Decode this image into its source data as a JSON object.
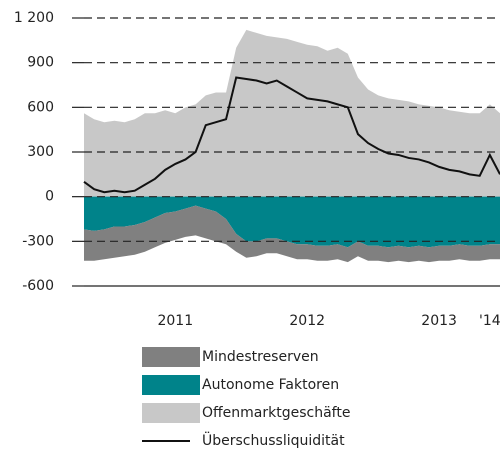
{
  "chart_data": {
    "type": "area",
    "categories": [
      null,
      null,
      null,
      null,
      null,
      null,
      null,
      null,
      null,
      "2011",
      null,
      null,
      null,
      null,
      null,
      null,
      null,
      null,
      null,
      null,
      null,
      null,
      "2012",
      null,
      null,
      null,
      null,
      null,
      null,
      null,
      null,
      null,
      null,
      null,
      null,
      "2013",
      null,
      null,
      null,
      null,
      "'14",
      null
    ],
    "series": [
      {
        "name": "Mindestreserven",
        "type": "area",
        "color": "#808080",
        "values": [
          -210,
          -200,
          -200,
          -210,
          -200,
          -200,
          -200,
          -200,
          -200,
          -190,
          -190,
          -200,
          -200,
          -200,
          -170,
          -120,
          -110,
          -100,
          -100,
          -100,
          -100,
          -100,
          -100,
          -100,
          -100,
          -100,
          -100,
          -100,
          -100,
          -100,
          -100,
          -100,
          -100,
          -100,
          -100,
          -100,
          -100,
          -100,
          -100,
          -100,
          -100,
          -100
        ]
      },
      {
        "name": "Autonome Faktoren",
        "type": "area",
        "color": "#00838a",
        "values": [
          -220,
          -230,
          -220,
          -200,
          -200,
          -190,
          -170,
          -140,
          -110,
          -100,
          -80,
          -60,
          -80,
          -100,
          -150,
          -250,
          -300,
          -300,
          -280,
          -280,
          -300,
          -320,
          -320,
          -330,
          -330,
          -320,
          -340,
          -300,
          -330,
          -330,
          -340,
          -330,
          -340,
          -330,
          -340,
          -330,
          -330,
          -320,
          -330,
          -330,
          -320,
          -320
        ]
      },
      {
        "name": "Offenmarktgeschäfte",
        "type": "area",
        "color": "#c8c8c8",
        "values": [
          560,
          520,
          500,
          510,
          500,
          520,
          560,
          560,
          580,
          560,
          600,
          620,
          680,
          700,
          700,
          1000,
          1120,
          1100,
          1080,
          1070,
          1060,
          1040,
          1020,
          1010,
          980,
          1000,
          960,
          800,
          720,
          680,
          660,
          650,
          640,
          620,
          610,
          600,
          580,
          570,
          560,
          560,
          620,
          560
        ]
      },
      {
        "name": "Überschussliquidität",
        "type": "line",
        "color": "#111111",
        "values": [
          100,
          50,
          30,
          40,
          30,
          40,
          80,
          120,
          180,
          220,
          250,
          300,
          480,
          500,
          520,
          800,
          790,
          780,
          760,
          780,
          740,
          700,
          660,
          650,
          640,
          620,
          600,
          420,
          360,
          320,
          290,
          280,
          260,
          250,
          230,
          200,
          180,
          170,
          150,
          140,
          280,
          150
        ]
      }
    ],
    "ylim": [
      -600,
      1200
    ],
    "yticks": [
      {
        "value": 1200,
        "label": "1 200"
      },
      900,
      600,
      300,
      0,
      -300,
      -600
    ],
    "grid": true
  }
}
